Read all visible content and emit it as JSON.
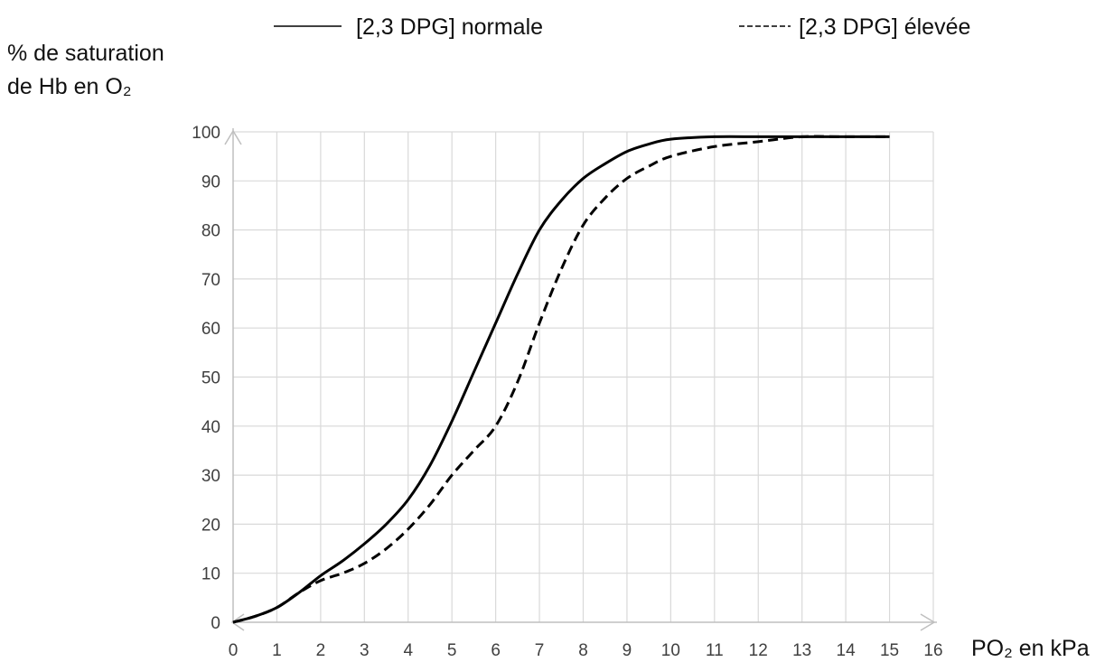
{
  "chart_data": {
    "type": "line",
    "ylabel_lines": [
      "% de saturation",
      "de Hb en O₂"
    ],
    "xlabel": "PO₂ en kPa",
    "xlim": [
      0,
      16
    ],
    "ylim": [
      0,
      100
    ],
    "x_ticks": [
      0,
      1,
      2,
      3,
      4,
      5,
      6,
      7,
      8,
      9,
      10,
      11,
      12,
      13,
      14,
      15,
      16
    ],
    "y_ticks": [
      0,
      10,
      20,
      30,
      40,
      50,
      60,
      70,
      80,
      90,
      100
    ],
    "grid": true,
    "legend_position": "top",
    "series": [
      {
        "name": "[2,3 DPG] normale",
        "style": "solid",
        "color": "#000000",
        "x": [
          0,
          0.5,
          1,
          1.5,
          2,
          2.5,
          3,
          3.5,
          4,
          4.5,
          5,
          5.5,
          6,
          6.5,
          7,
          7.5,
          8,
          8.5,
          9,
          9.5,
          10,
          11,
          12,
          13,
          14,
          15
        ],
        "y": [
          0,
          1.2,
          3,
          6,
          9.5,
          12.5,
          16,
          20,
          25,
          32,
          41,
          51,
          61,
          71,
          80,
          86,
          90.5,
          93.5,
          96,
          97.5,
          98.5,
          99,
          99,
          99,
          99,
          99
        ]
      },
      {
        "name": "[2,3 DPG] élevée",
        "style": "dashed",
        "color": "#000000",
        "x": [
          0,
          0.5,
          1,
          1.5,
          2,
          2.5,
          3,
          3.5,
          4,
          4.5,
          5,
          5.5,
          6,
          6.5,
          7,
          7.5,
          8,
          8.5,
          9,
          9.5,
          10,
          11,
          12,
          13,
          14,
          15
        ],
        "y": [
          0,
          1.2,
          3,
          6,
          8.5,
          10,
          12,
          15,
          19,
          24,
          30,
          35,
          40,
          49,
          61,
          72,
          81,
          86.5,
          90.5,
          93,
          95,
          97,
          98,
          99,
          99,
          99
        ]
      }
    ]
  }
}
